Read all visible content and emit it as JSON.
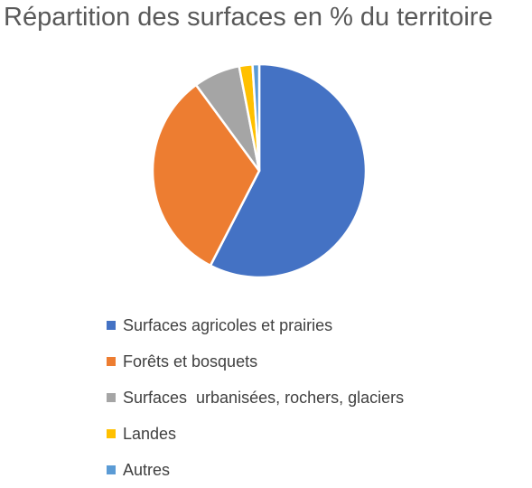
{
  "chart_data": {
    "type": "pie",
    "title": "Répartition des surfaces en % du territoire",
    "legend_position": "bottom",
    "series": [
      {
        "values": [
          57,
          32,
          7,
          2,
          1
        ]
      }
    ],
    "slices": [
      {
        "label": "Surfaces agricoles et prairies",
        "value": 57,
        "color": "#4472C4"
      },
      {
        "label": "Forêts et bosquets",
        "value": 32,
        "color": "#ED7D31"
      },
      {
        "label": "Surfaces  urbanisées, rochers, glaciers",
        "value": 7,
        "color": "#A5A5A5"
      },
      {
        "label": "Landes",
        "value": 2,
        "color": "#FFC000"
      },
      {
        "label": "Autres",
        "value": 1,
        "color": "#5B9BD5"
      }
    ]
  }
}
